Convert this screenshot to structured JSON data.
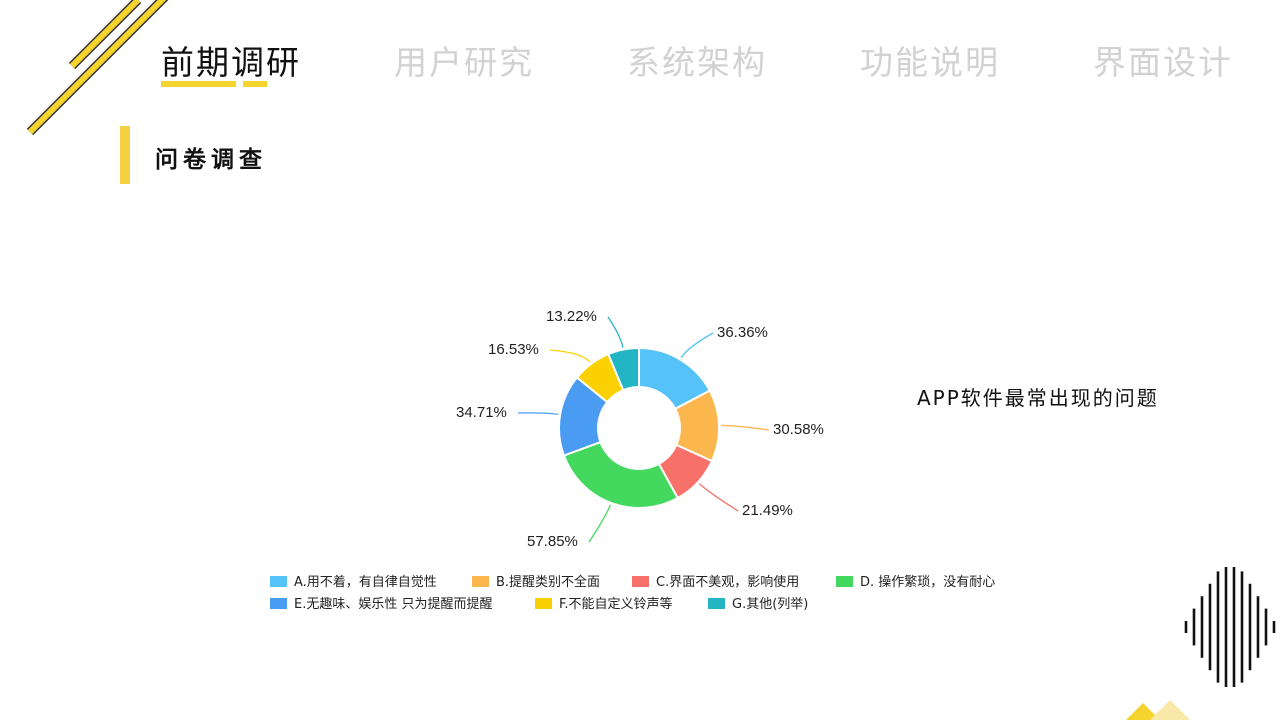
{
  "nav": {
    "items": [
      {
        "label": "前期调研",
        "active": true
      },
      {
        "label": "用户研究",
        "active": false
      },
      {
        "label": "系统架构",
        "active": false
      },
      {
        "label": "功能说明",
        "active": false
      },
      {
        "label": "界面设计",
        "active": false
      }
    ]
  },
  "section": {
    "title": "问卷调查"
  },
  "chart_title": "APP软件最常出现的问题",
  "colors": {
    "accent": "#f5d42e",
    "nav_inactive": "#d2d2d2",
    "text": "#111111"
  },
  "chart_data": {
    "type": "pie",
    "style": "donut",
    "title": "APP软件最常出现的问题",
    "categories": [
      "A.用不着，有自律自觉性",
      "B.提醒类别不全面",
      "C.界面不美观，影响使用",
      "D. 操作繁琐，没有耐心",
      "E.无趣味、娱乐性 只为提醒而提醒",
      "F.不能自定义铃声等",
      "G.其他(列举)"
    ],
    "values": [
      36.36,
      30.58,
      21.49,
      57.85,
      34.71,
      16.53,
      13.22
    ],
    "value_labels": [
      "36.36%",
      "30.58%",
      "21.49%",
      "57.85%",
      "34.71%",
      "16.53%",
      "13.22%"
    ],
    "colors": [
      "#55c3f7",
      "#fbb64e",
      "#f7716a",
      "#44d95e",
      "#4a9cf3",
      "#fbd000",
      "#24b5c4"
    ],
    "legend_position": "bottom"
  }
}
